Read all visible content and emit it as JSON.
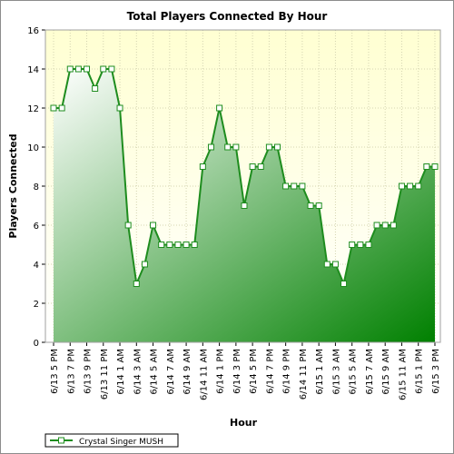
{
  "chart_data": {
    "type": "area",
    "title": "Total Players Connected By Hour",
    "xlabel": "Hour",
    "ylabel": "Players Connected",
    "ylim": [
      0,
      16
    ],
    "yticks": [
      0,
      2,
      4,
      6,
      8,
      10,
      12,
      14,
      16
    ],
    "grid": true,
    "legend_position": "bottom-left",
    "colors": {
      "line": "#1e8c1e",
      "fill_light": "#ffffff",
      "fill_dark": "#008000",
      "plot_bg_top": "#ffffd2",
      "plot_bg_bottom": "#ffffff",
      "grid": "#d4d4b0"
    },
    "tick_labels": [
      "6/13 5 PM",
      "6/13 7 PM",
      "6/13 9 PM",
      "6/13 11 PM",
      "6/14 1 AM",
      "6/14 3 AM",
      "6/14 5 AM",
      "6/14 7 AM",
      "6/14 9 AM",
      "6/14 11 AM",
      "6/14 1 PM",
      "6/14 3 PM",
      "6/14 5 PM",
      "6/14 7 PM",
      "6/14 9 PM",
      "6/14 11 PM",
      "6/15 1 AM",
      "6/15 3 AM",
      "6/15 5 AM",
      "6/15 7 AM",
      "6/15 9 AM",
      "6/15 11 AM",
      "6/15 1 PM",
      "6/15 3 PM"
    ],
    "tick_every": 2,
    "series": [
      {
        "name": "Crystal Singer MUSH",
        "values": [
          12,
          12,
          14,
          14,
          14,
          13,
          14,
          14,
          12,
          6,
          3,
          4,
          6,
          5,
          5,
          5,
          5,
          5,
          9,
          10,
          12,
          10,
          10,
          7,
          9,
          9,
          10,
          10,
          8,
          8,
          8,
          7,
          7,
          4,
          4,
          3,
          5,
          5,
          5,
          6,
          6,
          6,
          8,
          8,
          8,
          9,
          9
        ]
      }
    ]
  }
}
